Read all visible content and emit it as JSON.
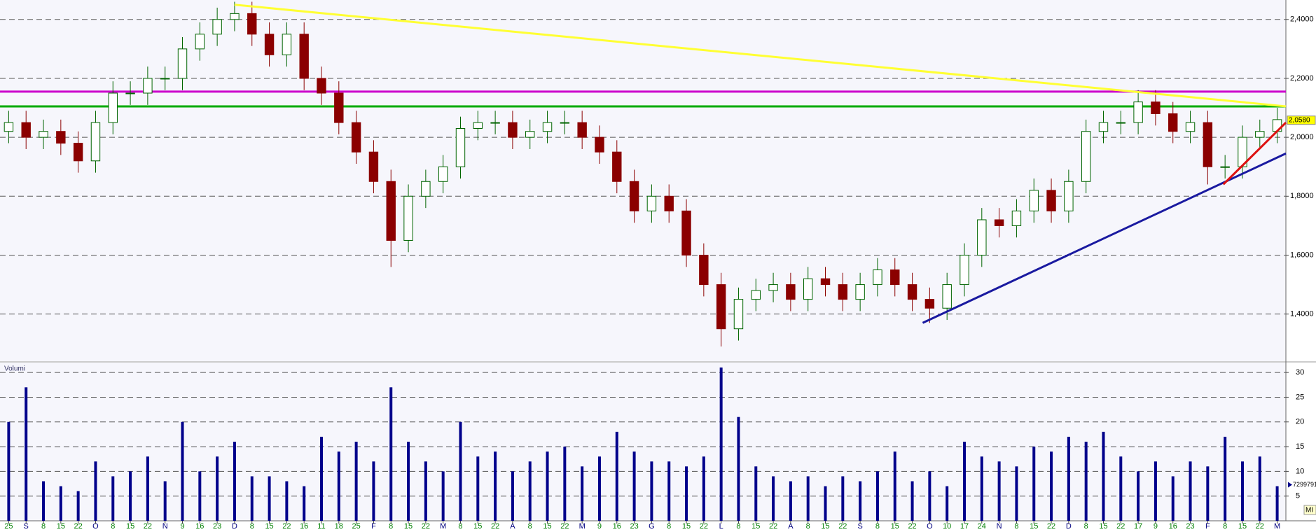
{
  "chart_data": {
    "type": "candlestick",
    "categories": [
      "25",
      "S",
      "8",
      "15",
      "22",
      "O",
      "8",
      "15",
      "22",
      "N",
      "9",
      "16",
      "23",
      "D",
      "8",
      "15",
      "22",
      "16",
      "11",
      "18",
      "25",
      "F",
      "8",
      "15",
      "22",
      "M",
      "8",
      "15",
      "22",
      "A",
      "8",
      "15",
      "22",
      "M",
      "9",
      "16",
      "23",
      "G",
      "8",
      "15",
      "22",
      "L",
      "8",
      "15",
      "22",
      "A",
      "8",
      "15",
      "22",
      "S",
      "8",
      "15",
      "22",
      "O",
      "10",
      "17",
      "24",
      "N",
      "8",
      "15",
      "22",
      "D",
      "8",
      "15",
      "22",
      "17",
      "9",
      "16",
      "23",
      "F",
      "8",
      "15",
      "22",
      "M"
    ],
    "open": [
      2.02,
      2.05,
      2.0,
      2.02,
      1.98,
      1.92,
      2.05,
      2.15,
      2.15,
      2.2,
      2.2,
      2.3,
      2.35,
      2.4,
      2.42,
      2.35,
      2.28,
      2.35,
      2.2,
      2.15,
      2.05,
      1.95,
      1.85,
      1.65,
      1.8,
      1.85,
      1.9,
      2.03,
      2.05,
      2.05,
      2.0,
      2.02,
      2.05,
      2.05,
      2.0,
      1.95,
      1.85,
      1.75,
      1.8,
      1.75,
      1.6,
      1.5,
      1.35,
      1.45,
      1.48,
      1.5,
      1.45,
      1.52,
      1.5,
      1.45,
      1.5,
      1.55,
      1.5,
      1.45,
      1.42,
      1.5,
      1.6,
      1.72,
      1.7,
      1.75,
      1.82,
      1.75,
      1.85,
      2.02,
      2.05,
      2.05,
      2.12,
      2.08,
      2.02,
      2.05,
      1.9,
      1.9,
      2.0,
      2.02
    ],
    "high": [
      2.09,
      2.09,
      2.06,
      2.06,
      2.02,
      2.09,
      2.19,
      2.19,
      2.24,
      2.24,
      2.34,
      2.39,
      2.44,
      2.46,
      2.46,
      2.39,
      2.39,
      2.39,
      2.24,
      2.19,
      2.09,
      1.99,
      1.89,
      1.84,
      1.89,
      1.94,
      2.07,
      2.09,
      2.09,
      2.09,
      2.06,
      2.09,
      2.09,
      2.09,
      2.04,
      1.99,
      1.89,
      1.84,
      1.84,
      1.79,
      1.64,
      1.54,
      1.49,
      1.52,
      1.54,
      1.54,
      1.56,
      1.56,
      1.54,
      1.54,
      1.59,
      1.59,
      1.54,
      1.49,
      1.54,
      1.64,
      1.76,
      1.76,
      1.79,
      1.86,
      1.86,
      1.89,
      2.06,
      2.09,
      2.09,
      2.16,
      2.16,
      2.12,
      2.09,
      2.09,
      1.94,
      2.04,
      2.06,
      2.1
    ],
    "low": [
      1.98,
      1.96,
      1.96,
      1.94,
      1.88,
      1.88,
      2.01,
      2.11,
      2.11,
      2.16,
      2.16,
      2.26,
      2.31,
      2.36,
      2.31,
      2.24,
      2.24,
      2.16,
      2.11,
      2.01,
      1.91,
      1.81,
      1.56,
      1.61,
      1.76,
      1.81,
      1.86,
      1.99,
      2.01,
      1.96,
      1.96,
      1.98,
      2.01,
      1.96,
      1.91,
      1.81,
      1.71,
      1.71,
      1.71,
      1.56,
      1.46,
      1.29,
      1.31,
      1.41,
      1.44,
      1.41,
      1.41,
      1.46,
      1.41,
      1.41,
      1.46,
      1.46,
      1.41,
      1.37,
      1.38,
      1.46,
      1.56,
      1.66,
      1.66,
      1.71,
      1.71,
      1.71,
      1.81,
      1.98,
      2.01,
      2.01,
      2.04,
      1.98,
      1.98,
      1.84,
      1.86,
      1.86,
      1.96,
      1.98
    ],
    "close": [
      2.05,
      2.0,
      2.02,
      1.98,
      1.92,
      2.05,
      2.15,
      2.15,
      2.2,
      2.2,
      2.3,
      2.35,
      2.4,
      2.42,
      2.35,
      2.28,
      2.35,
      2.2,
      2.15,
      2.05,
      1.95,
      1.85,
      1.65,
      1.8,
      1.85,
      1.9,
      2.03,
      2.05,
      2.05,
      2.0,
      2.02,
      2.05,
      2.05,
      2.0,
      1.95,
      1.85,
      1.75,
      1.8,
      1.75,
      1.6,
      1.5,
      1.35,
      1.45,
      1.48,
      1.5,
      1.45,
      1.52,
      1.5,
      1.45,
      1.5,
      1.55,
      1.5,
      1.45,
      1.42,
      1.5,
      1.6,
      1.72,
      1.7,
      1.75,
      1.82,
      1.75,
      1.85,
      2.02,
      2.05,
      2.05,
      2.12,
      2.08,
      2.02,
      2.05,
      1.9,
      1.9,
      2.0,
      2.02,
      2.06
    ],
    "up_color": "#006400",
    "down_color": "#8b0000",
    "ylim": [
      1.24,
      2.466
    ],
    "yticks": [
      {
        "value": 1.4,
        "label": "1,4000"
      },
      {
        "value": 1.6,
        "label": "1,6000"
      },
      {
        "value": 1.8,
        "label": "1,8000"
      },
      {
        "value": 2.0,
        "label": "2,0000"
      },
      {
        "value": 2.2,
        "label": "2,2000"
      },
      {
        "value": 2.4,
        "label": "2,4000"
      }
    ],
    "grid": true,
    "hlines": [
      {
        "value": 2.155,
        "color": "#cc00cc"
      },
      {
        "value": 2.105,
        "color": "#00aa00"
      }
    ],
    "trendlines": [
      {
        "color": "#ffff33",
        "x": [
          13,
          74.2
        ],
        "y": [
          2.45,
          2.105
        ]
      },
      {
        "color": "#1a1aa0",
        "x": [
          52.6,
          74.2
        ],
        "y": [
          1.37,
          1.945
        ]
      },
      {
        "color": "#dd1111",
        "x": [
          69.9,
          74
        ],
        "y": [
          1.84,
          2.05
        ]
      }
    ],
    "last_price": {
      "value": 2.058,
      "label": "2,0580"
    },
    "volume": {
      "title": "Volumi",
      "unit": "MI",
      "color": "#00008b",
      "values": [
        20,
        27,
        8,
        7,
        6,
        12,
        9,
        10,
        13,
        8,
        20,
        10,
        13,
        16,
        9,
        9,
        8,
        7,
        17,
        14,
        16,
        12,
        27,
        16,
        12,
        10,
        20,
        13,
        14,
        10,
        12,
        14,
        15,
        11,
        13,
        18,
        14,
        12,
        12,
        11,
        13,
        31,
        21,
        11,
        9,
        8,
        9,
        7,
        9,
        8,
        10,
        14,
        8,
        10,
        7,
        16,
        13,
        12,
        11,
        15,
        14,
        17,
        16,
        18,
        13,
        10,
        12,
        9,
        12,
        11,
        17,
        12,
        13,
        7
      ],
      "ylim": [
        0,
        32
      ],
      "yticks": [
        5,
        10,
        15,
        20,
        25,
        30
      ],
      "last": {
        "value": 7.299791,
        "label": "7299791"
      }
    }
  }
}
